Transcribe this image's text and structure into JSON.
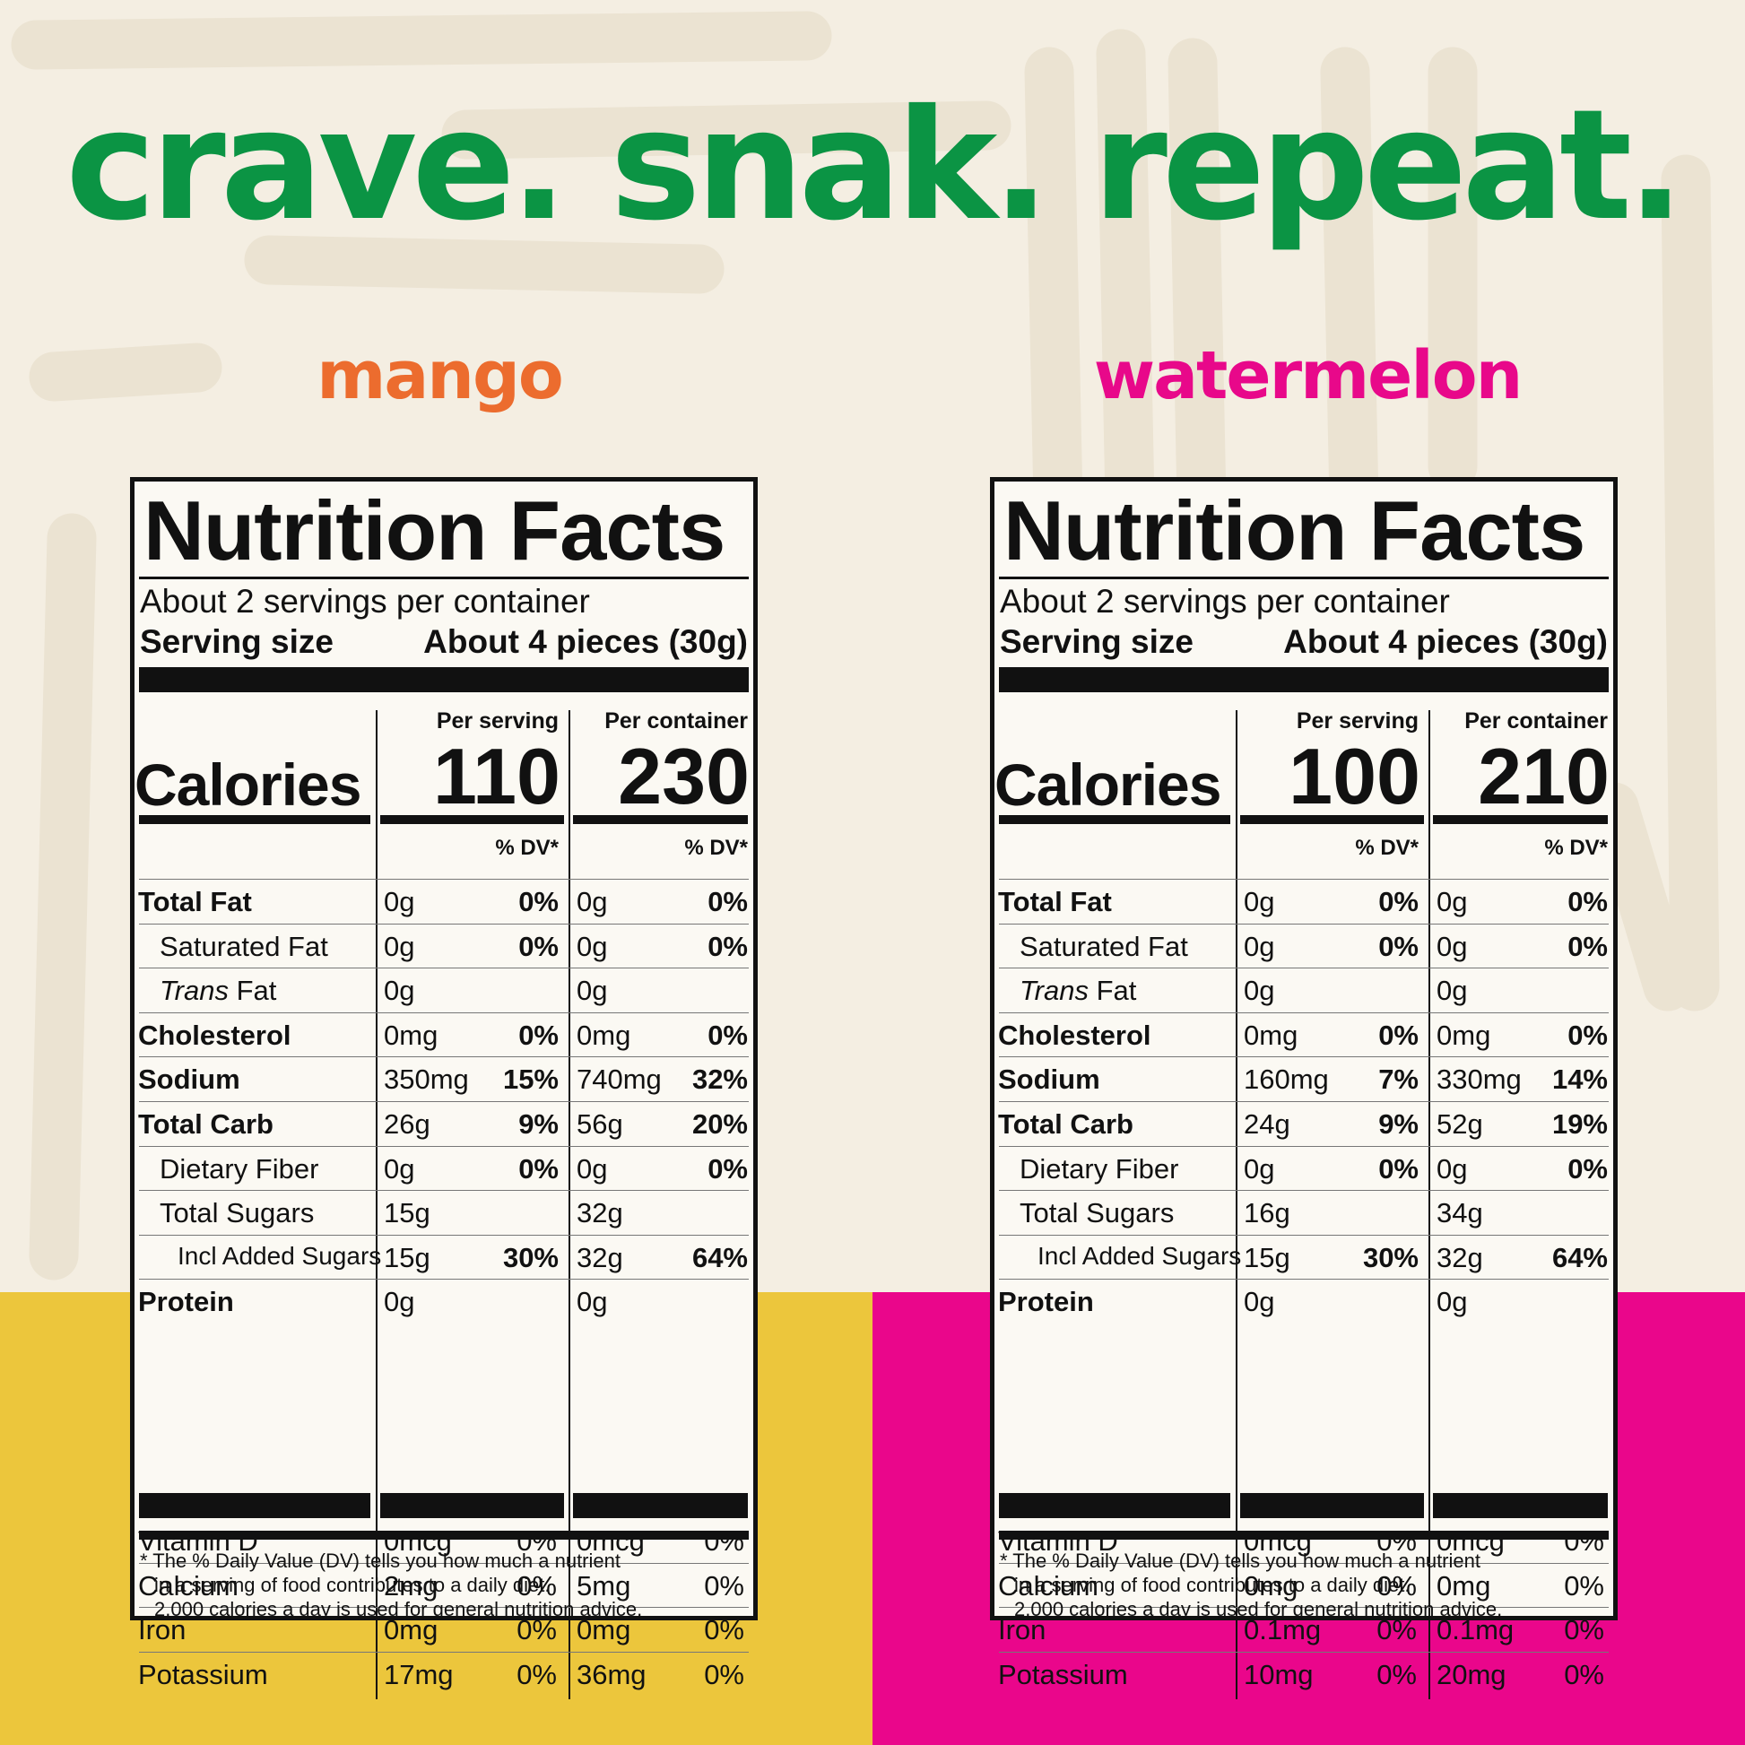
{
  "headline": "crave. snak. repeat.",
  "colors": {
    "headline": "#0b9444",
    "mango_title": "#ec6c2e",
    "watermelon_title": "#e8088a",
    "mango_band": "#ecc63c",
    "watermelon_band": "#ea068b",
    "background": "#f4eee2"
  },
  "labels": [
    {
      "flavor": "mango",
      "title": "Nutrition Facts",
      "servings_per_container": "About 2 servings per container",
      "serving_size_label": "Serving size",
      "serving_size_value": "About 4 pieces (30g)",
      "per_serving_label": "Per serving",
      "per_container_label": "Per container",
      "calories_label": "Calories",
      "calories_serving": "110",
      "calories_container": "230",
      "dv_header": "% DV*",
      "nutrients": [
        {
          "name": "Total Fat",
          "style": "bold",
          "serving_amount": "0g",
          "serving_dv": "0%",
          "container_amount": "0g",
          "container_dv": "0%"
        },
        {
          "name": "Saturated Fat",
          "style": "indent",
          "serving_amount": "0g",
          "serving_dv": "0%",
          "container_amount": "0g",
          "container_dv": "0%"
        },
        {
          "name_italic": "Trans",
          "name": " Fat",
          "style": "indent",
          "serving_amount": "0g",
          "serving_dv": "",
          "container_amount": "0g",
          "container_dv": ""
        },
        {
          "name": "Cholesterol",
          "style": "bold",
          "serving_amount": "0mg",
          "serving_dv": "0%",
          "container_amount": "0mg",
          "container_dv": "0%"
        },
        {
          "name": "Sodium",
          "style": "bold",
          "serving_amount": "350mg",
          "serving_dv": "15%",
          "container_amount": "740mg",
          "container_dv": "32%"
        },
        {
          "name": "Total Carb",
          "style": "bold",
          "serving_amount": "26g",
          "serving_dv": "9%",
          "container_amount": "56g",
          "container_dv": "20%"
        },
        {
          "name": "Dietary Fiber",
          "style": "indent",
          "serving_amount": "0g",
          "serving_dv": "0%",
          "container_amount": "0g",
          "container_dv": "0%"
        },
        {
          "name": "Total Sugars",
          "style": "indent",
          "serving_amount": "15g",
          "serving_dv": "",
          "container_amount": "32g",
          "container_dv": ""
        },
        {
          "name": "Incl Added Sugars",
          "style": "indent2",
          "serving_amount": "15g",
          "serving_dv": "30%",
          "container_amount": "32g",
          "container_dv": "64%"
        },
        {
          "name": "Protein",
          "style": "bold",
          "serving_amount": "0g",
          "serving_dv": "",
          "container_amount": "0g",
          "container_dv": ""
        }
      ],
      "vitamins": [
        {
          "name": "Vitamin D",
          "serving_amount": "0mcg",
          "serving_dv": "0%",
          "container_amount": "0mcg",
          "container_dv": "0%"
        },
        {
          "name": "Calcium",
          "serving_amount": "2mg",
          "serving_dv": "0%",
          "container_amount": "5mg",
          "container_dv": "0%"
        },
        {
          "name": "Iron",
          "serving_amount": "0mg",
          "serving_dv": "0%",
          "container_amount": "0mg",
          "container_dv": "0%"
        },
        {
          "name": "Potassium",
          "serving_amount": "17mg",
          "serving_dv": "0%",
          "container_amount": "36mg",
          "container_dv": "0%"
        }
      ],
      "footnote": [
        "* The % Daily Value (DV) tells you how much a nutrient",
        "in a serving of food contributes to a daily diet.",
        "2,000 calories a day is used for general nutrition advice."
      ]
    },
    {
      "flavor": "watermelon",
      "title": "Nutrition Facts",
      "servings_per_container": "About 2 servings per container",
      "serving_size_label": "Serving size",
      "serving_size_value": "About 4 pieces (30g)",
      "per_serving_label": "Per serving",
      "per_container_label": "Per container",
      "calories_label": "Calories",
      "calories_serving": "100",
      "calories_container": "210",
      "dv_header": "% DV*",
      "nutrients": [
        {
          "name": "Total Fat",
          "style": "bold",
          "serving_amount": "0g",
          "serving_dv": "0%",
          "container_amount": "0g",
          "container_dv": "0%"
        },
        {
          "name": "Saturated Fat",
          "style": "indent",
          "serving_amount": "0g",
          "serving_dv": "0%",
          "container_amount": "0g",
          "container_dv": "0%"
        },
        {
          "name_italic": "Trans",
          "name": " Fat",
          "style": "indent",
          "serving_amount": "0g",
          "serving_dv": "",
          "container_amount": "0g",
          "container_dv": ""
        },
        {
          "name": "Cholesterol",
          "style": "bold",
          "serving_amount": "0mg",
          "serving_dv": "0%",
          "container_amount": "0mg",
          "container_dv": "0%"
        },
        {
          "name": "Sodium",
          "style": "bold",
          "serving_amount": "160mg",
          "serving_dv": "7%",
          "container_amount": "330mg",
          "container_dv": "14%"
        },
        {
          "name": "Total Carb",
          "style": "bold",
          "serving_amount": "24g",
          "serving_dv": "9%",
          "container_amount": "52g",
          "container_dv": "19%"
        },
        {
          "name": "Dietary Fiber",
          "style": "indent",
          "serving_amount": "0g",
          "serving_dv": "0%",
          "container_amount": "0g",
          "container_dv": "0%"
        },
        {
          "name": "Total Sugars",
          "style": "indent",
          "serving_amount": "16g",
          "serving_dv": "",
          "container_amount": "34g",
          "container_dv": ""
        },
        {
          "name": "Incl Added Sugars",
          "style": "indent2",
          "serving_amount": "15g",
          "serving_dv": "30%",
          "container_amount": "32g",
          "container_dv": "64%"
        },
        {
          "name": "Protein",
          "style": "bold",
          "serving_amount": "0g",
          "serving_dv": "",
          "container_amount": "0g",
          "container_dv": ""
        }
      ],
      "vitamins": [
        {
          "name": "Vitamin D",
          "serving_amount": "0mcg",
          "serving_dv": "0%",
          "container_amount": "0mcg",
          "container_dv": "0%"
        },
        {
          "name": "Calcium",
          "serving_amount": "0mg",
          "serving_dv": "0%",
          "container_amount": "0mg",
          "container_dv": "0%"
        },
        {
          "name": "Iron",
          "serving_amount": "0.1mg",
          "serving_dv": "0%",
          "container_amount": "0.1mg",
          "container_dv": "0%"
        },
        {
          "name": "Potassium",
          "serving_amount": "10mg",
          "serving_dv": "0%",
          "container_amount": "20mg",
          "container_dv": "0%"
        }
      ],
      "footnote": [
        "* The % Daily Value (DV) tells you how much a nutrient",
        "in a serving of food contributes to a daily diet.",
        "2,000 calories a day is used for general nutrition advice."
      ]
    }
  ]
}
